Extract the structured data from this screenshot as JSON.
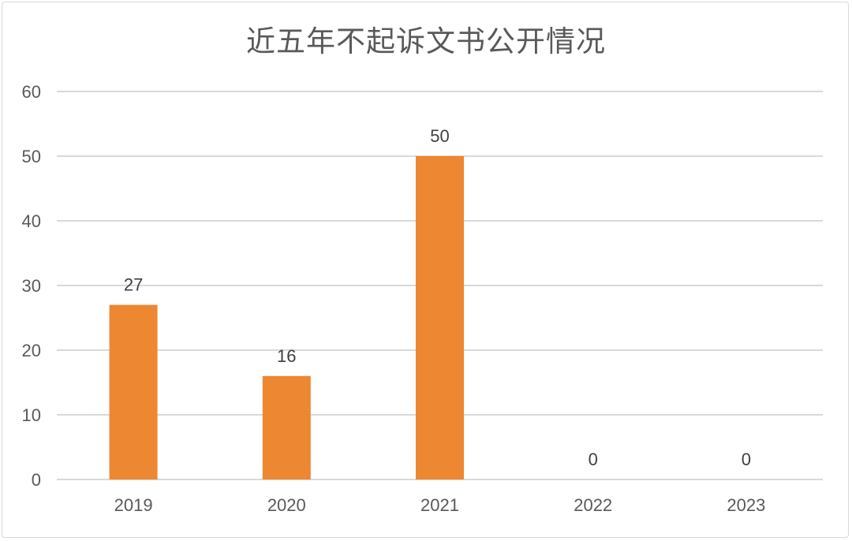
{
  "chart_data": {
    "type": "bar",
    "title": "近五年不起诉文书公开情况",
    "categories": [
      "2019",
      "2020",
      "2021",
      "2022",
      "2023"
    ],
    "values": [
      27,
      16,
      50,
      0,
      0
    ],
    "data_labels": [
      "27",
      "16",
      "50",
      "0",
      "0"
    ],
    "ylim": [
      0,
      60
    ],
    "yticks": [
      0,
      10,
      20,
      30,
      40,
      50,
      60
    ],
    "grid": true,
    "legend": "none",
    "bar_color": "#ED8731",
    "grid_color": "#d9d9d9"
  }
}
